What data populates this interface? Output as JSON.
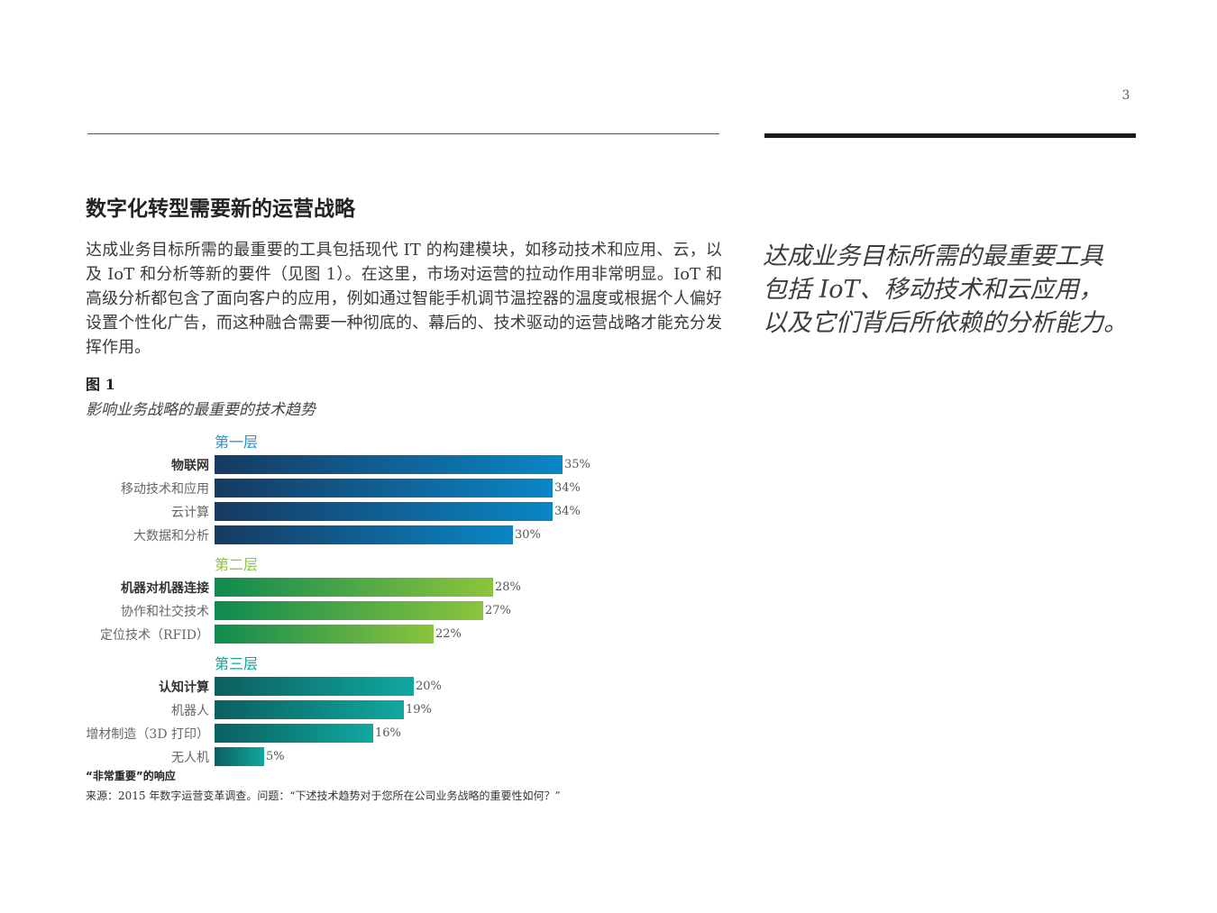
{
  "page": {
    "number": "3"
  },
  "section": {
    "title": "数字化转型需要新的运营战略",
    "body": "达成业务目标所需的最重要的工具包括现代 IT 的构建模块，如移动技术和应用、云，以及 IoT 和分析等新的要件（见图 1）。在这里，市场对运营的拉动作用非常明显。IoT 和高级分析都包含了面向客户的应用，例如通过智能手机调节温控器的温度或根据个人偏好设置个性化广告，而这种融合需要一种彻底的、幕后的、技术驱动的运营战略才能充分发挥作用。"
  },
  "pull_quote": "达成业务目标所需的最重要工具\n包括 IoT、移动技术和云应用，\n以及它们背后所依赖的分析能力。",
  "figure": {
    "label": "图 1",
    "subtitle": "影响业务战略的最重要的技术趋势",
    "legend_note": "“非常重要”的响应",
    "source": "来源：2015 年数字运营变革调查。问题：“下述技术趋势对于您所在公司业务战略的重要性如何？”"
  },
  "chart_data": {
    "type": "bar",
    "orientation": "horizontal",
    "unit": "%",
    "xlim": [
      0,
      35
    ],
    "groups": [
      {
        "name": "第一层",
        "color": "#2a8fc8",
        "gradient": [
          "#163a62",
          "#0a86c6"
        ],
        "items": [
          {
            "label": "物联网",
            "value": 35,
            "display": "35%",
            "bold": true
          },
          {
            "label": "移动技术和应用",
            "value": 34,
            "display": "34%",
            "bold": false
          },
          {
            "label": "云计算",
            "value": 34,
            "display": "34%",
            "bold": false
          },
          {
            "label": "大数据和分析",
            "value": 30,
            "display": "30%",
            "bold": false
          }
        ]
      },
      {
        "name": "第二层",
        "color": "#8cc63f",
        "gradient": [
          "#0f8a50",
          "#8cc43c"
        ],
        "items": [
          {
            "label": "机器对机器连接",
            "value": 28,
            "display": "28%",
            "bold": true
          },
          {
            "label": "协作和社交技术",
            "value": 27,
            "display": "27%",
            "bold": false
          },
          {
            "label": "定位技术（RFID）",
            "value": 22,
            "display": "22%",
            "bold": false
          }
        ]
      },
      {
        "name": "第三层",
        "color": "#12a39a",
        "gradient": [
          "#0b5f5f",
          "#10a8a0"
        ],
        "items": [
          {
            "label": "认知计算",
            "value": 20,
            "display": "20%",
            "bold": true
          },
          {
            "label": "机器人",
            "value": 19,
            "display": "19%",
            "bold": false
          },
          {
            "label": "增材制造（3D 打印）",
            "value": 16,
            "display": "16%",
            "bold": false
          },
          {
            "label": "无人机",
            "value": 5,
            "display": "5%",
            "bold": false
          }
        ]
      }
    ]
  }
}
